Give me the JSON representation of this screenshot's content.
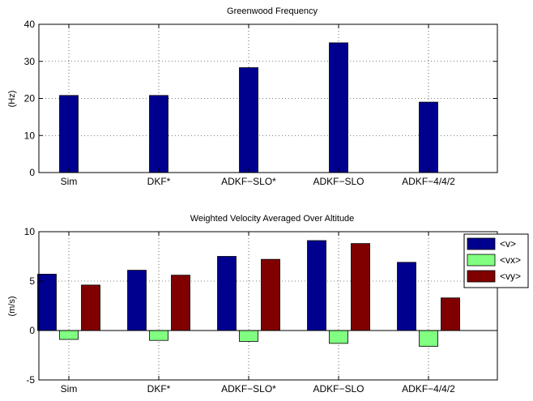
{
  "chart_data": [
    {
      "type": "bar",
      "title": "Greenwood Frequency",
      "xlabel": "",
      "ylabel": "(Hz)",
      "categories": [
        "Sim",
        "DKF*",
        "ADKF−SLO*",
        "ADKF−SLO",
        "ADKF−4/4/2"
      ],
      "ylim": [
        0,
        40
      ],
      "yticks": [
        0,
        10,
        20,
        30,
        40
      ],
      "grid": true,
      "legend": null,
      "series": [
        {
          "values": [
            20.8,
            20.8,
            28.3,
            35.0,
            19.0
          ],
          "color": "#00008f"
        }
      ]
    },
    {
      "type": "bar",
      "title": "Weighted Velocity Averaged Over Altitude",
      "xlabel": "",
      "ylabel": "(m/s)",
      "categories": [
        "Sim",
        "DKF*",
        "ADKF−SLO*",
        "ADKF−SLO",
        "ADKF−4/4/2"
      ],
      "ylim": [
        -5,
        10
      ],
      "yticks": [
        -5,
        0,
        5,
        10
      ],
      "grid": true,
      "legend": "top-right",
      "series": [
        {
          "name": "<v>",
          "values": [
            5.7,
            6.1,
            7.5,
            9.1,
            6.9
          ],
          "color": "#00008f"
        },
        {
          "name": "<vx>",
          "values": [
            -0.9,
            -1.0,
            -1.1,
            -1.3,
            -1.6
          ],
          "color": "#80ff80"
        },
        {
          "name": "<vy>",
          "values": [
            4.6,
            5.6,
            7.2,
            8.8,
            3.3
          ],
          "color": "#800000"
        }
      ]
    }
  ]
}
